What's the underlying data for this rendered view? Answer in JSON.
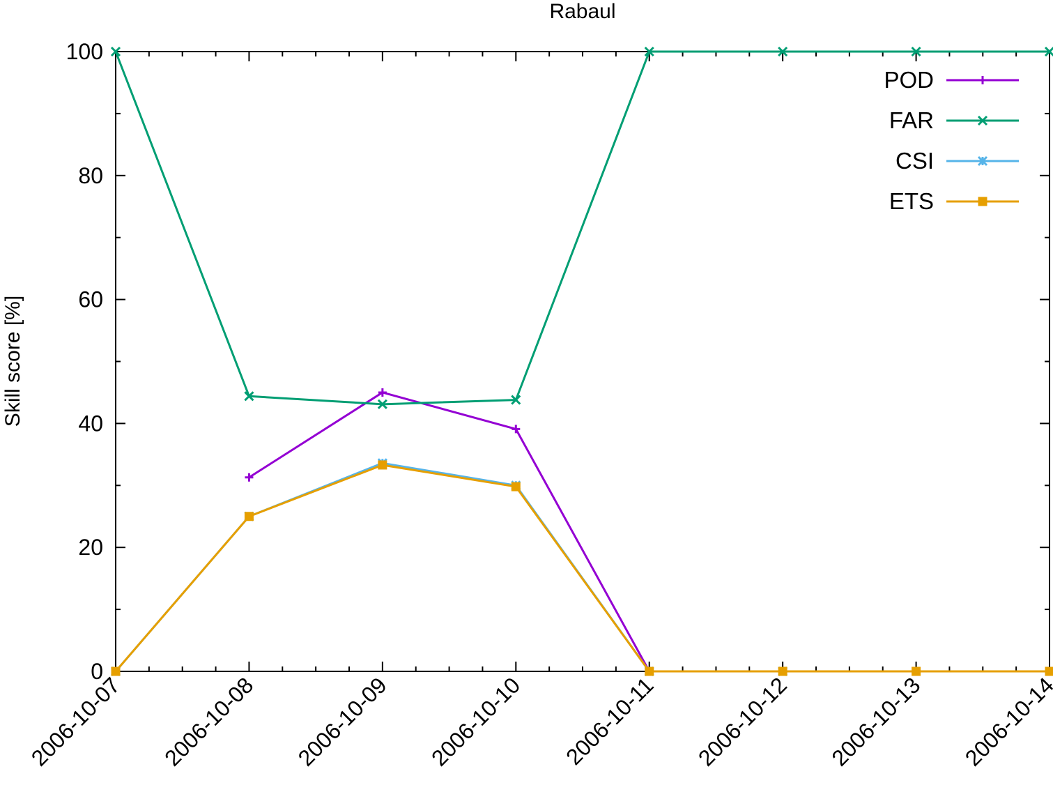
{
  "chart_data": {
    "type": "line",
    "title": "Rabaul",
    "xlabel": "",
    "ylabel": "Skill score [%]",
    "x": [
      "2006-10-07",
      "2006-10-08",
      "2006-10-09",
      "2006-10-10",
      "2006-10-11",
      "2006-10-12",
      "2006-10-13",
      "2006-10-14"
    ],
    "ylim": [
      0,
      100
    ],
    "yticks": [
      0,
      20,
      40,
      60,
      80,
      100
    ],
    "grid": false,
    "legend_position": "top-right",
    "series": [
      {
        "name": "POD",
        "color": "#9400d3",
        "marker": "plus",
        "values": [
          null,
          31.3,
          45.0,
          39.1,
          0,
          null,
          null,
          null
        ]
      },
      {
        "name": "FAR",
        "color": "#009e73",
        "marker": "cross",
        "values": [
          100,
          44.4,
          43.1,
          43.8,
          100,
          100,
          100,
          100
        ]
      },
      {
        "name": "CSI",
        "color": "#56b4e9",
        "marker": "star",
        "values": [
          0,
          25.0,
          33.6,
          30.0,
          0,
          0,
          null,
          null
        ]
      },
      {
        "name": "ETS",
        "color": "#e69f00",
        "marker": "square",
        "values": [
          0,
          25.0,
          33.3,
          29.8,
          0,
          0,
          0,
          0
        ]
      }
    ]
  }
}
